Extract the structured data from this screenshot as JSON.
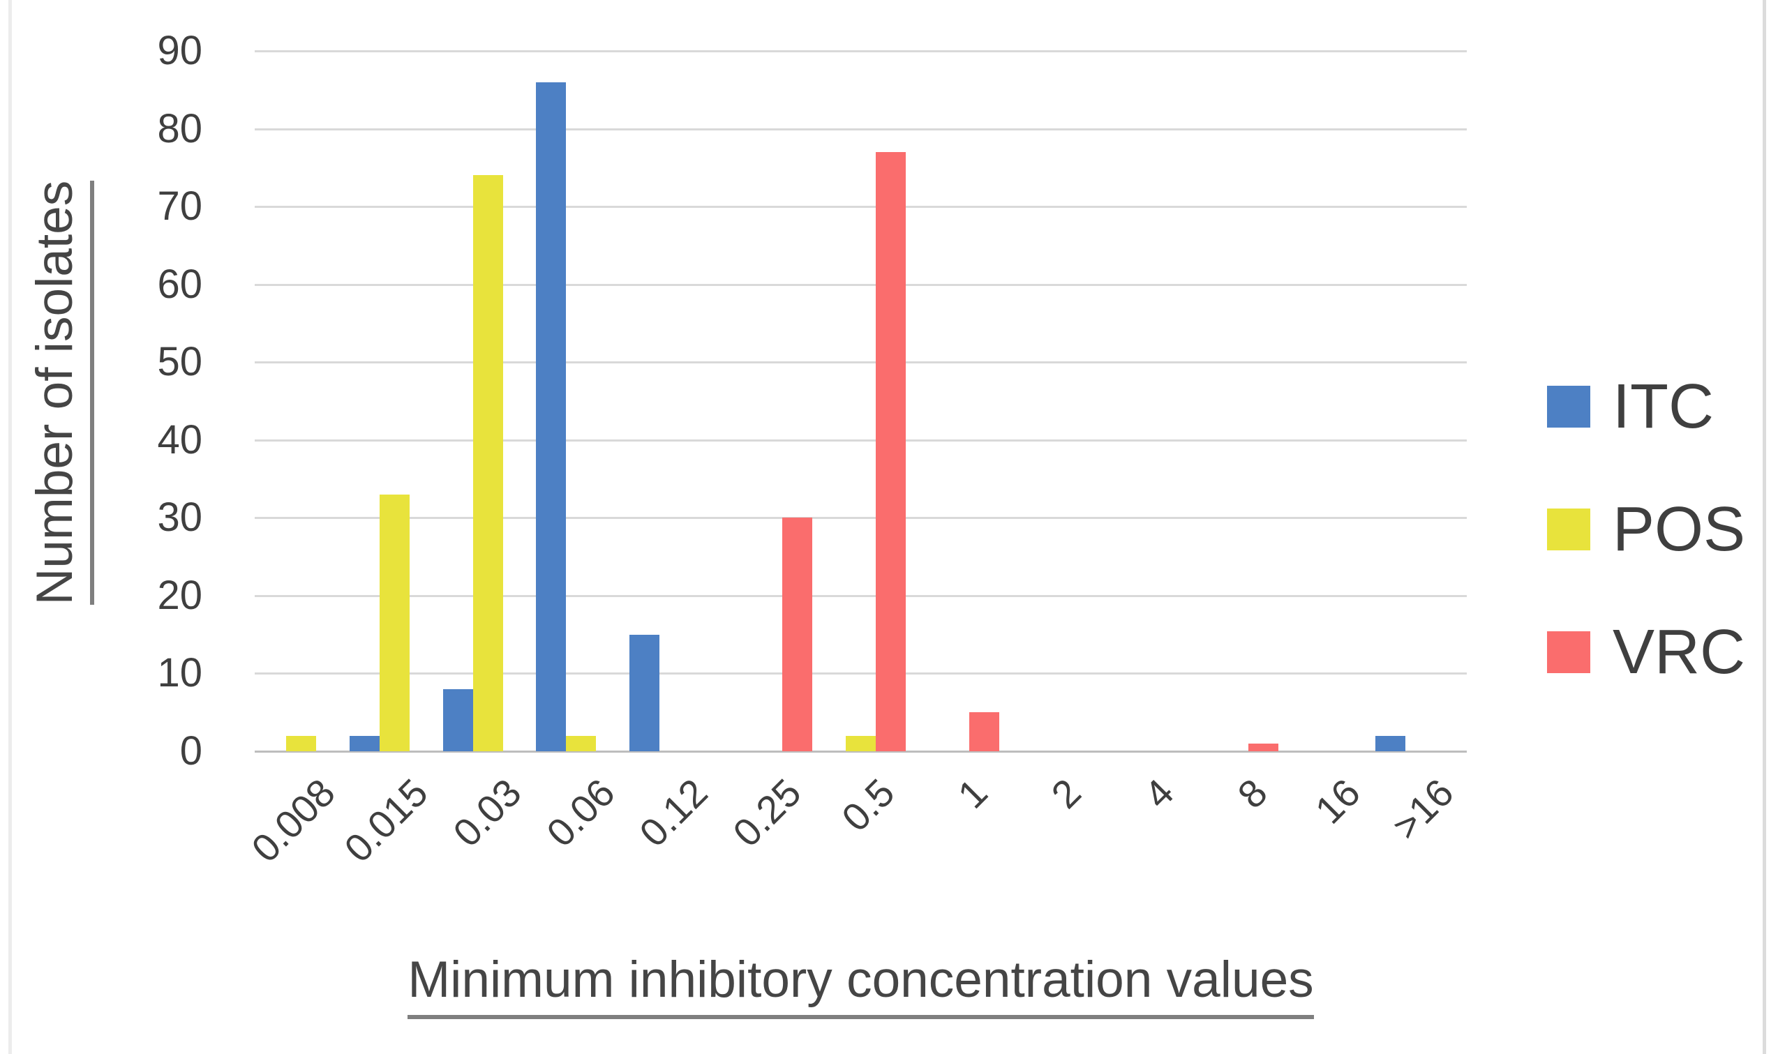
{
  "chart_data": {
    "type": "bar",
    "title": "",
    "xlabel": "Minimum inhibitory concentration values",
    "ylabel": "Number of isolates",
    "categories": [
      "0.008",
      "0.015",
      "0.03",
      "0.06",
      "0.12",
      "0.25",
      "0.5",
      "1",
      "2",
      "4",
      "8",
      "16",
      ">16"
    ],
    "series": [
      {
        "name": "ITC",
        "color": "#4d80c4",
        "values": [
          0,
          2,
          8,
          86,
          15,
          0,
          0,
          0,
          0,
          0,
          0,
          0,
          2
        ]
      },
      {
        "name": "POS",
        "color": "#e8e33c",
        "values": [
          2,
          33,
          74,
          2,
          0,
          0,
          2,
          0,
          0,
          0,
          0,
          0,
          0
        ]
      },
      {
        "name": "VRC",
        "color": "#fa6d6d",
        "values": [
          0,
          0,
          0,
          0,
          0,
          30,
          77,
          5,
          0,
          0,
          1,
          0,
          0
        ]
      }
    ],
    "ylim": [
      0,
      90
    ],
    "yticks": [
      0,
      10,
      20,
      30,
      40,
      50,
      60,
      70,
      80,
      90
    ],
    "grid": true,
    "legend_position": "right"
  },
  "colors": {
    "grid": "#d9d9d9",
    "axis_line": "#bdbdbd",
    "tick_text": "#3f3f3f",
    "title_text": "#454545",
    "underline": "#7f7f7f",
    "page_edge": "#e3e3e3"
  }
}
